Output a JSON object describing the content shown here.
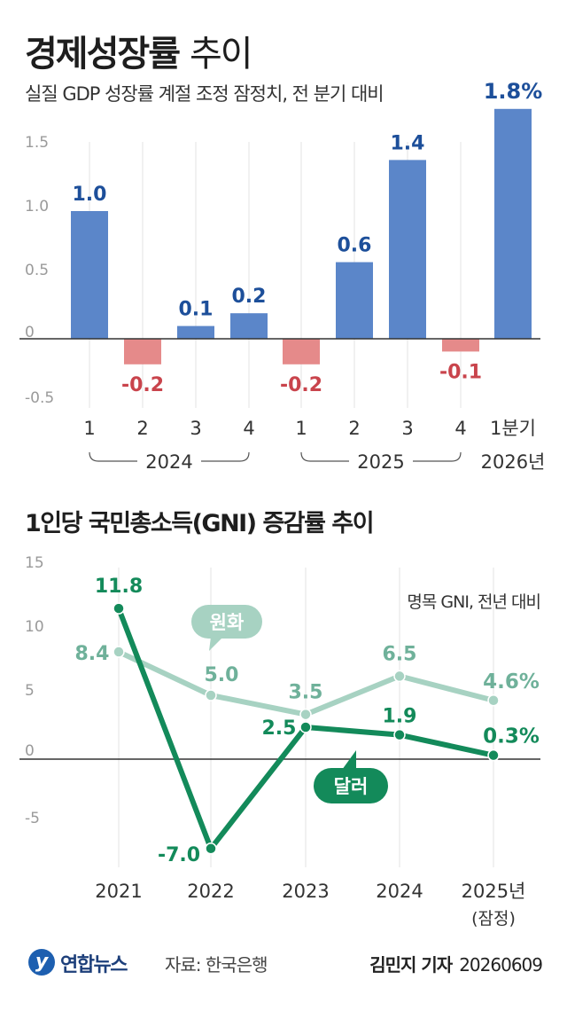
{
  "title_bold": "경제성장률",
  "title_light": "추이",
  "subtitle": "실질 GDP 성장률 계절 조정 잠정치, 전 분기 대비",
  "chart2_title": "1인당 국민총소득(GNI) 증감률 추이",
  "chart2_note": "명목 GNI, 전년 대비",
  "footer": {
    "logo_text": "연합뉴스",
    "source": "자료: 한국은행",
    "reporter": "김민지 기자",
    "date": "20260609"
  },
  "colors": {
    "positive_bar": "#5b86c9",
    "negative_bar": "#e58a8a",
    "positive_label": "#1d4f9a",
    "negative_label": "#c9444c",
    "dollar_line": "#138a5a",
    "won_line": "#a7d2c2",
    "won_label": "#6fb19a"
  },
  "chart_data": [
    {
      "type": "bar",
      "title": "경제성장률 추이",
      "subtitle": "실질 GDP 성장률 계절 조정 잠정치, 전 분기 대비",
      "categories": [
        "1",
        "2",
        "3",
        "4",
        "1",
        "2",
        "3",
        "4",
        "1분기"
      ],
      "groups": [
        {
          "label": "2024",
          "from": 0,
          "to": 3
        },
        {
          "label": "2025",
          "from": 4,
          "to": 7
        },
        {
          "label": "2026년",
          "from": 8,
          "to": 8
        }
      ],
      "values": [
        1.0,
        -0.2,
        0.1,
        0.2,
        -0.2,
        0.6,
        1.4,
        -0.1,
        1.8
      ],
      "value_labels": [
        "1.0",
        "-0.2",
        "0.1",
        "0.2",
        "-0.2",
        "0.6",
        "1.4",
        "-0.1",
        "1.8%"
      ],
      "yticks": [
        -0.5,
        0,
        0.5,
        1.0,
        1.5
      ],
      "ytick_labels": [
        "-0.5",
        "0",
        "0.5",
        "1.0",
        "1.5"
      ],
      "ylim": [
        -0.5,
        1.8
      ],
      "grid": "vertical"
    },
    {
      "type": "line",
      "title": "1인당 국민총소득(GNI) 증감률 추이",
      "note": "명목 GNI, 전년 대비",
      "x": [
        "2021",
        "2022",
        "2023",
        "2024",
        "2025년"
      ],
      "x_sub": [
        "",
        "",
        "",
        "",
        "(잠정)"
      ],
      "series": [
        {
          "name": "원화",
          "values": [
            8.4,
            5.0,
            3.5,
            6.5,
            4.6
          ],
          "labels": [
            "8.4",
            "5.0",
            "3.5",
            "6.5",
            "4.6%"
          ]
        },
        {
          "name": "달러",
          "values": [
            11.8,
            -7.0,
            2.5,
            1.9,
            0.3
          ],
          "labels": [
            "11.8",
            "-7.0",
            "2.5",
            "1.9",
            "0.3%"
          ]
        }
      ],
      "yticks": [
        -5,
        0,
        5,
        10,
        15
      ],
      "ytick_labels": [
        "-5",
        "0",
        "5",
        "10",
        "15"
      ],
      "ylim": [
        -8,
        15
      ],
      "grid": "vertical"
    }
  ]
}
